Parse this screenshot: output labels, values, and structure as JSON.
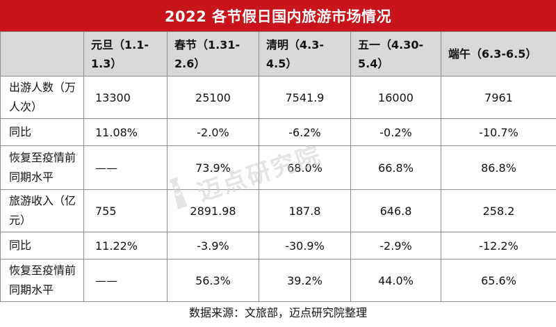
{
  "title": "2022 各节假日国内旅游市场情况",
  "headers": [
    "",
    "元旦（1.1-1.3）",
    "春节（1.31-2.6）",
    "清明（4.3-4.5）",
    "五一（4.30-5.4）",
    "端午（6.3-6.5）"
  ],
  "rows": [
    {
      "label": "出游人数（万人次）",
      "values": [
        "13300",
        "25100",
        "7541.9",
        "16000",
        "7961"
      ]
    },
    {
      "label": "同比",
      "values": [
        "11.08%",
        "-2.0%",
        "-6.2%",
        "-0.2%",
        "-10.7%"
      ]
    },
    {
      "label": "恢复至疫情前同期水平",
      "values": [
        "——",
        "73.9%",
        "68.0%",
        "66.8%",
        "86.8%"
      ]
    },
    {
      "label": "旅游收入（亿元）",
      "values": [
        "755",
        "2891.98",
        "187.8",
        "646.8",
        "258.2"
      ]
    },
    {
      "label": "同比",
      "values": [
        "11.22%",
        "-3.9%",
        "-30.9%",
        "-2.9%",
        "-12.2%"
      ]
    },
    {
      "label": "恢复至疫情前同期水平",
      "values": [
        "——",
        "56.3%",
        "39.2%",
        "44.0%",
        "65.6%"
      ]
    }
  ],
  "source": "数据来源：文旅部，迈点研究院整理",
  "watermark": "迈点研究院",
  "colors": {
    "title_bg": "#c8141b",
    "header_bg": "#d9d9d9",
    "border": "#8c8c8c"
  }
}
